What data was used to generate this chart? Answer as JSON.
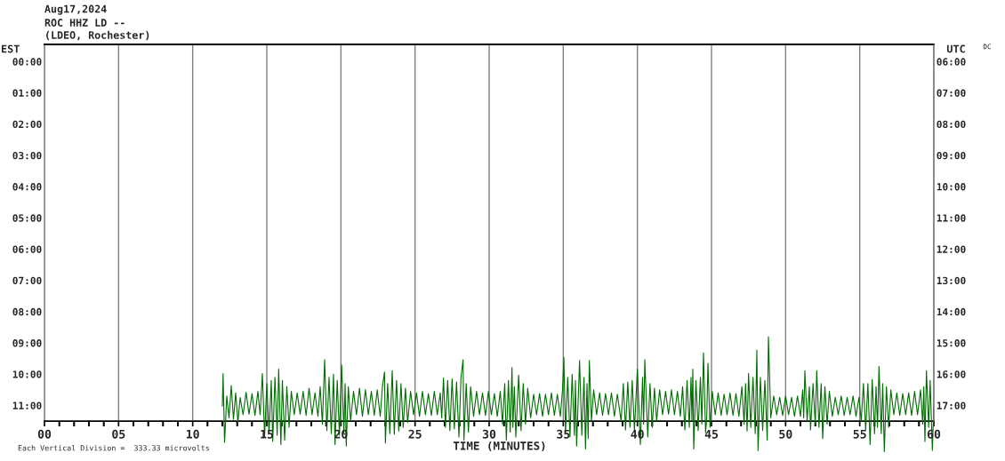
{
  "chart_data": {
    "type": "line",
    "title": "Aug17,2024",
    "subtitle": "ROC HHZ LD --\n(LDEO, Rochester)",
    "xlabel": "TIME (MINUTES)",
    "ylabel": "EST",
    "y2label": "UTC",
    "annotations": [
      "DC",
      "Each Vertical Division =  333.33 microvolts"
    ],
    "xlim": [
      0,
      60
    ],
    "xticks": [
      {
        "value": 0,
        "label": "00"
      },
      {
        "value": 1,
        "label": null
      },
      {
        "value": 2,
        "label": null
      },
      {
        "value": 3,
        "label": null
      },
      {
        "value": 4,
        "label": null
      },
      {
        "value": 5,
        "label": "05"
      },
      {
        "value": 6,
        "label": null
      },
      {
        "value": 7,
        "label": null
      },
      {
        "value": 8,
        "label": null
      },
      {
        "value": 9,
        "label": null
      },
      10,
      {
        "value": 11,
        "label": null
      },
      {
        "value": 12,
        "label": null
      },
      {
        "value": 13,
        "label": null
      },
      {
        "value": 14,
        "label": null
      },
      15,
      {
        "value": 16,
        "label": null
      },
      {
        "value": 17,
        "label": null
      },
      {
        "value": 18,
        "label": null
      },
      {
        "value": 19,
        "label": null
      },
      20,
      {
        "value": 21,
        "label": null
      },
      {
        "value": 22,
        "label": null
      },
      {
        "value": 23,
        "label": null
      },
      {
        "value": 24,
        "label": null
      },
      25,
      {
        "value": 26,
        "label": null
      },
      {
        "value": 27,
        "label": null
      },
      {
        "value": 28,
        "label": null
      },
      {
        "value": 29,
        "label": null
      },
      30,
      {
        "value": 31,
        "label": null
      },
      {
        "value": 32,
        "label": null
      },
      {
        "value": 33,
        "label": null
      },
      {
        "value": 34,
        "label": null
      },
      35,
      {
        "value": 36,
        "label": null
      },
      {
        "value": 37,
        "label": null
      },
      {
        "value": 38,
        "label": null
      },
      {
        "value": 39,
        "label": null
      },
      40,
      {
        "value": 41,
        "label": null
      },
      {
        "value": 42,
        "label": null
      },
      {
        "value": 43,
        "label": null
      },
      {
        "value": 44,
        "label": null
      },
      45,
      {
        "value": 46,
        "label": null
      },
      {
        "value": 47,
        "label": null
      },
      {
        "value": 48,
        "label": null
      },
      {
        "value": 49,
        "label": null
      },
      50,
      {
        "value": 51,
        "label": null
      },
      {
        "value": 52,
        "label": null
      },
      {
        "value": 53,
        "label": null
      },
      {
        "value": 54,
        "label": null
      },
      55,
      {
        "value": 56,
        "label": null
      },
      {
        "value": 57,
        "label": null
      },
      {
        "value": 58,
        "label": null
      },
      {
        "value": 59,
        "label": null
      },
      60
    ],
    "ylim": [
      12.55,
      -0.55
    ],
    "yticks": [
      {
        "value": 0,
        "label": "00:00"
      },
      {
        "value": 1,
        "label": "01:00"
      },
      {
        "value": 2,
        "label": "02:00"
      },
      {
        "value": 3,
        "label": "03:00"
      },
      {
        "value": 4,
        "label": "04:00"
      },
      {
        "value": 5,
        "label": "05:00"
      },
      {
        "value": 6,
        "label": "06:00"
      },
      {
        "value": 7,
        "label": "07:00"
      },
      {
        "value": 8,
        "label": "08:00"
      },
      {
        "value": 9,
        "label": "09:00"
      },
      {
        "value": 10,
        "label": "10:00"
      },
      {
        "value": 11,
        "label": "11:00"
      }
    ],
    "y2lim": [
      18.55,
      5.45
    ],
    "y2ticks": [
      {
        "value": 6,
        "label": "06:00"
      },
      {
        "value": 7,
        "label": "07:00"
      },
      {
        "value": 8,
        "label": "08:00"
      },
      {
        "value": 9,
        "label": "09:00"
      },
      {
        "value": 10,
        "label": "10:00"
      },
      {
        "value": 11,
        "label": "11:00"
      },
      {
        "value": 12,
        "label": "12:00"
      },
      {
        "value": 13,
        "label": "13:00"
      },
      {
        "value": 14,
        "label": "14:00"
      },
      {
        "value": 15,
        "label": "15:00"
      },
      {
        "value": 16,
        "label": "16:00"
      },
      {
        "value": 17,
        "label": "17:00"
      }
    ],
    "grid": "x",
    "series": [
      {
        "color": "#006e00",
        "x": [
          12.0,
          12.05,
          12.15,
          12.3,
          12.45,
          12.6,
          12.75,
          12.9,
          13.05,
          13.2,
          13.4,
          13.6,
          13.8,
          14.0,
          14.2,
          14.4,
          14.55,
          14.7,
          14.85,
          15.0,
          15.15,
          15.3,
          15.4,
          15.55,
          15.7,
          15.8,
          15.95,
          16.05,
          16.2,
          16.35,
          16.5,
          16.65,
          16.85,
          17.05,
          17.25,
          17.45,
          17.65,
          17.85,
          18.05,
          18.25,
          18.45,
          18.6,
          18.75,
          18.9,
          19.05,
          19.2,
          19.35,
          19.5,
          19.6,
          19.75,
          19.9,
          20.05,
          20.2,
          20.28,
          20.36,
          20.5,
          20.65,
          20.85,
          21.05,
          21.25,
          21.45,
          21.65,
          21.85,
          22.05,
          22.25,
          22.45,
          22.65,
          22.8,
          22.94,
          23.0,
          23.15,
          23.3,
          23.46,
          23.6,
          23.75,
          23.9,
          24.05,
          24.2,
          24.35,
          24.5,
          24.7,
          24.9,
          25.1,
          25.3,
          25.5,
          25.7,
          25.9,
          26.1,
          26.3,
          26.5,
          26.7,
          26.8,
          26.92,
          27.05,
          27.2,
          27.35,
          27.5,
          27.65,
          27.8,
          27.96,
          28.1,
          28.24,
          28.3,
          28.45,
          28.6,
          28.75,
          28.95,
          29.15,
          29.35,
          29.55,
          29.75,
          29.95,
          30.15,
          30.35,
          30.55,
          30.75,
          30.9,
          31.05,
          31.16,
          31.3,
          31.42,
          31.54,
          31.6,
          31.7,
          31.8,
          31.99,
          32.15,
          32.3,
          32.45,
          32.6,
          32.8,
          33.0,
          33.2,
          33.4,
          33.6,
          33.8,
          34.0,
          34.2,
          34.4,
          34.6,
          34.8,
          34.95,
          35.04,
          35.15,
          35.3,
          35.45,
          35.6,
          35.75,
          35.82,
          35.9,
          36.1,
          36.25,
          36.4,
          36.5,
          36.6,
          36.68,
          36.76,
          36.9,
          37.05,
          37.25,
          37.45,
          37.65,
          37.85,
          38.05,
          38.25,
          38.45,
          38.65,
          38.9,
          39.05,
          39.2,
          39.35,
          39.5,
          39.65,
          39.8,
          40.0,
          40.2,
          40.35,
          40.42,
          40.5,
          40.7,
          40.85,
          41.0,
          41.15,
          41.3,
          41.5,
          41.7,
          41.9,
          42.1,
          42.3,
          42.5,
          42.7,
          42.9,
          43.05,
          43.2,
          43.35,
          43.5,
          43.62,
          43.68,
          43.74,
          43.8,
          43.95,
          44.1,
          44.25,
          44.35,
          44.46,
          44.6,
          44.68,
          44.76,
          44.9,
          45.05,
          45.25,
          45.45,
          45.65,
          45.85,
          46.05,
          46.25,
          46.45,
          46.65,
          46.85,
          47.05,
          47.2,
          47.3,
          47.4,
          47.5,
          47.65,
          47.8,
          47.95,
          48.06,
          48.14,
          48.3,
          48.45,
          48.6,
          48.76,
          48.84,
          49.0,
          49.2,
          49.4,
          49.6,
          49.8,
          50.0,
          50.2,
          50.4,
          50.6,
          50.8,
          51.0,
          51.15,
          51.22,
          51.3,
          51.45,
          51.6,
          51.68,
          51.85,
          52.0,
          52.1,
          52.25,
          52.4,
          52.5,
          52.65,
          52.8,
          52.95,
          53.15,
          53.35,
          53.55,
          53.75,
          53.95,
          54.15,
          54.35,
          54.55,
          54.75,
          54.95,
          55.1,
          55.25,
          55.4,
          55.55,
          55.7,
          55.84,
          56.0,
          56.1,
          56.2,
          56.3,
          56.45,
          56.55,
          56.66,
          56.8,
          56.95,
          57.1,
          57.3,
          57.5,
          57.7,
          57.9,
          58.1,
          58.3,
          58.5,
          58.7,
          58.9,
          59.1,
          59.25,
          59.32,
          59.4,
          59.5,
          59.65,
          59.75,
          59.9,
          60.0
        ],
        "values": [
          11.02,
          9.98,
          12.18,
          10.7,
          11.4,
          10.36,
          11.45,
          10.6,
          11.54,
          10.75,
          11.3,
          10.58,
          11.28,
          10.62,
          11.32,
          10.55,
          11.3,
          9.98,
          12.0,
          10.3,
          11.9,
          10.2,
          12.15,
          10.1,
          11.95,
          9.84,
          12.25,
          10.2,
          12.11,
          10.4,
          11.7,
          10.55,
          11.3,
          10.6,
          11.28,
          10.55,
          11.32,
          10.45,
          11.3,
          10.6,
          11.35,
          10.4,
          11.6,
          9.54,
          11.8,
          10.1,
          11.9,
          10.0,
          12.25,
          10.2,
          11.95,
          9.7,
          11.9,
          10.3,
          12.3,
          10.4,
          11.5,
          10.55,
          11.3,
          10.45,
          11.35,
          10.5,
          11.3,
          10.55,
          11.32,
          10.5,
          11.35,
          10.4,
          9.93,
          12.2,
          10.3,
          11.9,
          9.89,
          11.92,
          10.2,
          11.82,
          10.3,
          11.7,
          10.45,
          11.55,
          10.55,
          11.3,
          10.6,
          11.35,
          10.55,
          11.3,
          10.62,
          11.32,
          10.55,
          11.3,
          10.6,
          11.4,
          10.12,
          11.7,
          10.2,
          11.8,
          10.15,
          11.75,
          10.25,
          12.01,
          10.1,
          9.54,
          12.11,
          10.3,
          11.85,
          10.4,
          11.35,
          10.55,
          11.3,
          10.6,
          11.32,
          10.55,
          11.3,
          10.62,
          11.35,
          10.55,
          11.6,
          10.3,
          12.11,
          10.2,
          11.85,
          9.79,
          11.7,
          10.4,
          12.01,
          10.03,
          11.8,
          10.3,
          11.6,
          10.45,
          11.4,
          10.64,
          11.3,
          10.62,
          11.35,
          10.64,
          11.3,
          10.6,
          11.32,
          10.64,
          11.35,
          10.5,
          9.46,
          11.9,
          10.1,
          12.0,
          10.0,
          11.95,
          10.2,
          12.3,
          9.56,
          11.95,
          10.1,
          12.39,
          10.3,
          12.06,
          9.56,
          11.5,
          10.5,
          11.3,
          10.6,
          11.32,
          10.62,
          11.3,
          10.6,
          11.35,
          10.64,
          11.5,
          10.3,
          11.78,
          10.25,
          11.7,
          10.2,
          11.8,
          9.84,
          12.25,
          10.1,
          11.6,
          9.54,
          12.01,
          10.3,
          11.7,
          10.45,
          11.5,
          10.5,
          11.3,
          10.55,
          11.28,
          10.5,
          11.3,
          10.55,
          11.35,
          10.4,
          11.78,
          10.2,
          11.7,
          10.1,
          11.5,
          9.84,
          12.39,
          10.2,
          11.8,
          10.1,
          11.6,
          9.32,
          11.87,
          11.4,
          9.65,
          11.7,
          10.55,
          11.3,
          10.6,
          11.32,
          10.64,
          11.3,
          10.6,
          11.32,
          10.62,
          11.35,
          10.4,
          11.6,
          10.3,
          11.82,
          9.98,
          11.7,
          10.1,
          11.9,
          9.23,
          12.44,
          10.1,
          11.8,
          10.2,
          12.11,
          8.8,
          11.4,
          10.7,
          11.3,
          10.74,
          11.32,
          10.7,
          11.3,
          10.74,
          11.35,
          10.7,
          11.35,
          10.5,
          11.4,
          9.89,
          11.5,
          10.4,
          11.78,
          10.3,
          11.6,
          9.89,
          11.7,
          10.3,
          12.06,
          10.4,
          11.6,
          10.55,
          11.35,
          10.74,
          11.3,
          10.7,
          11.32,
          10.74,
          11.3,
          10.7,
          11.35,
          10.74,
          11.5,
          10.3,
          11.8,
          10.3,
          12.25,
          10.17,
          11.9,
          10.4,
          11.7,
          9.75,
          11.9,
          10.3,
          12.48,
          10.4,
          11.7,
          10.5,
          11.3,
          10.6,
          11.32,
          10.62,
          11.3,
          10.6,
          11.32,
          10.55,
          11.3,
          10.5,
          11.6,
          10.4,
          12.15,
          9.89,
          11.7,
          10.2,
          12.44,
          11.0
        ]
      }
    ]
  }
}
